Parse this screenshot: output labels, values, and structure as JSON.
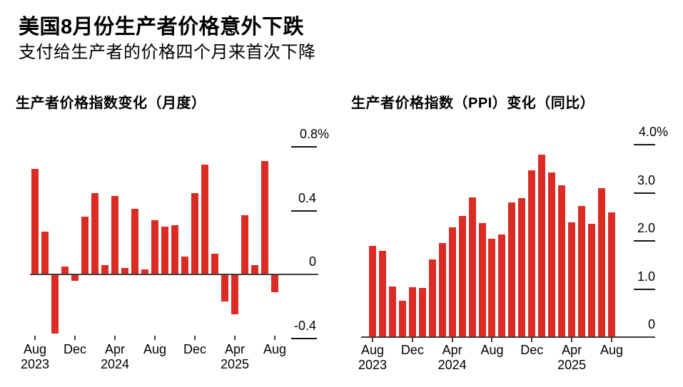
{
  "header": {
    "title": "美国8月份生产者价格意外下跌",
    "subtitle": "支付给生产者的价格四个月来首次下降"
  },
  "colors": {
    "bar": "#DC2B23",
    "axis": "#3c3c3c",
    "tick": "#141414",
    "text": "#000000",
    "background": "#ffffff"
  },
  "chart_data": [
    {
      "type": "bar",
      "title": "生产者价格指数变化（月度）",
      "unit": "%",
      "legend": "none",
      "grid": false,
      "ylim": [
        -0.4,
        0.8
      ],
      "categories": [
        "Aug 2023",
        "Sep 2023",
        "Oct 2023",
        "Nov 2023",
        "Dec 2023",
        "Jan 2024",
        "Feb 2024",
        "Mar 2024",
        "Apr 2024",
        "May 2024",
        "Jun 2024",
        "Jul 2024",
        "Aug 2024",
        "Sep 2024",
        "Oct 2024",
        "Nov 2024",
        "Dec 2024",
        "Jan 2025",
        "Feb 2025",
        "Mar 2025",
        "Apr 2025",
        "May 2025",
        "Jun 2025",
        "Jul 2025",
        "Aug 2025"
      ],
      "values": [
        0.66,
        0.27,
        -0.37,
        0.05,
        -0.04,
        0.36,
        0.51,
        0.06,
        0.49,
        0.04,
        0.41,
        0.03,
        0.34,
        0.3,
        0.31,
        0.11,
        0.51,
        0.69,
        0.13,
        -0.17,
        -0.25,
        0.37,
        0.06,
        0.71,
        -0.11
      ],
      "yticks": [
        {
          "label": "0.8%",
          "value": 0.8
        },
        {
          "label": "0.4",
          "value": 0.4
        },
        {
          "label": "0",
          "value": 0
        },
        {
          "label": "-0.4",
          "value": -0.4
        }
      ],
      "xticks": [
        {
          "index": 0,
          "label": "Aug",
          "year": "2023"
        },
        {
          "index": 4,
          "label": "Dec"
        },
        {
          "index": 8,
          "label": "Apr",
          "year": "2024"
        },
        {
          "index": 12,
          "label": "Aug"
        },
        {
          "index": 16,
          "label": "Dec"
        },
        {
          "index": 20,
          "label": "Apr",
          "year": "2025"
        },
        {
          "index": 24,
          "label": "Aug"
        }
      ]
    },
    {
      "type": "bar",
      "title": "生产者价格指数（PPI）变化（同比）",
      "unit": "%",
      "legend": "none",
      "grid": false,
      "ylim": [
        0,
        4.0
      ],
      "categories": [
        "Aug 2023",
        "Sep 2023",
        "Oct 2023",
        "Nov 2023",
        "Dec 2023",
        "Jan 2024",
        "Feb 2024",
        "Mar 2024",
        "Apr 2024",
        "May 2024",
        "Jun 2024",
        "Jul 2024",
        "Aug 2024",
        "Sep 2024",
        "Oct 2024",
        "Nov 2024",
        "Dec 2024",
        "Jan 2025",
        "Feb 2025",
        "Mar 2025",
        "Apr 2025",
        "May 2025",
        "Jun 2025",
        "Jul 2025",
        "Aug 2025"
      ],
      "values": [
        1.89,
        1.8,
        1.05,
        0.75,
        1.04,
        1.02,
        1.61,
        1.95,
        2.28,
        2.52,
        2.91,
        2.37,
        2.05,
        2.14,
        2.8,
        2.89,
        3.47,
        3.79,
        3.42,
        3.15,
        2.38,
        2.72,
        2.36,
        3.09,
        2.6
      ],
      "yticks": [
        {
          "label": "4.0%",
          "value": 4.0
        },
        {
          "label": "3.0",
          "value": 3.0
        },
        {
          "label": "2.0",
          "value": 2.0
        },
        {
          "label": "1.0",
          "value": 1.0
        },
        {
          "label": "0",
          "value": 0
        }
      ],
      "xticks": [
        {
          "index": 0,
          "label": "Aug",
          "year": "2023"
        },
        {
          "index": 4,
          "label": "Dec"
        },
        {
          "index": 8,
          "label": "Apr",
          "year": "2024"
        },
        {
          "index": 12,
          "label": "Aug"
        },
        {
          "index": 16,
          "label": "Dec"
        },
        {
          "index": 20,
          "label": "Apr",
          "year": "2025"
        },
        {
          "index": 24,
          "label": "Aug"
        }
      ]
    }
  ]
}
